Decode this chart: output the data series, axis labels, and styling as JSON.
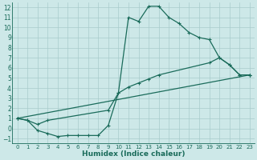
{
  "xlabel": "Humidex (Indice chaleur)",
  "xlim": [
    -0.5,
    23.5
  ],
  "ylim": [
    -1.5,
    12.5
  ],
  "xticks": [
    0,
    1,
    2,
    3,
    4,
    5,
    6,
    7,
    8,
    9,
    10,
    11,
    12,
    13,
    14,
    15,
    16,
    17,
    18,
    19,
    20,
    21,
    22,
    23
  ],
  "yticks": [
    -1,
    0,
    1,
    2,
    3,
    4,
    5,
    6,
    7,
    8,
    9,
    10,
    11,
    12
  ],
  "bg_color": "#cde8e8",
  "grid_color": "#a8cccc",
  "line_color": "#1a6b5a",
  "line1_x": [
    0,
    1,
    2,
    3,
    4,
    5,
    6,
    7,
    8,
    9,
    10,
    11,
    12,
    13,
    14,
    15,
    16,
    17,
    18,
    19,
    20,
    21,
    22,
    23
  ],
  "line1_y": [
    1.0,
    0.8,
    -0.2,
    -0.5,
    -0.8,
    -0.7,
    -0.7,
    -0.7,
    -0.7,
    0.3,
    3.5,
    11.0,
    10.6,
    12.1,
    12.1,
    11.0,
    10.4,
    9.5,
    9.0,
    8.8,
    7.0,
    6.3,
    5.3,
    5.3
  ],
  "line2_x": [
    0,
    1,
    2,
    3,
    9,
    10,
    11,
    12,
    13,
    14,
    19,
    20,
    21,
    22,
    23
  ],
  "line2_y": [
    1.0,
    0.8,
    0.4,
    0.8,
    1.8,
    3.5,
    4.1,
    4.5,
    4.9,
    5.3,
    6.5,
    7.0,
    6.3,
    5.3,
    5.3
  ],
  "line3_x": [
    0,
    23
  ],
  "line3_y": [
    1.0,
    5.3
  ],
  "markersize": 3,
  "linewidth": 0.9
}
